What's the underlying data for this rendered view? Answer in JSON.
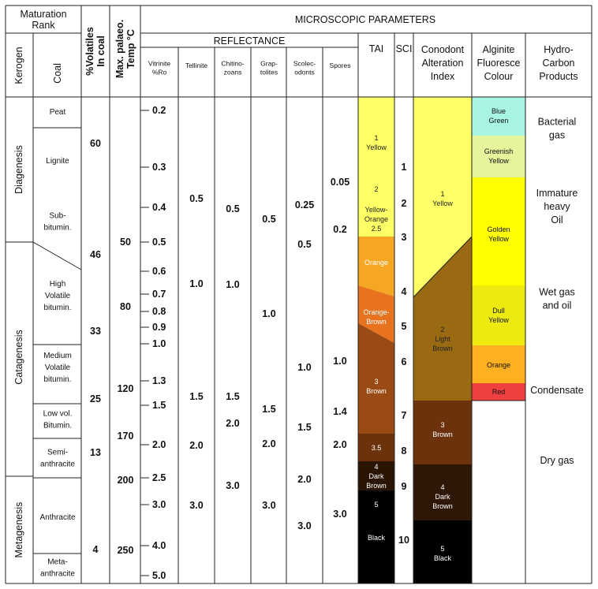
{
  "headers": {
    "maturation_rank": [
      "Maturation",
      "Rank"
    ],
    "kerogen": "Kerogen",
    "coal": "Coal",
    "volatiles": [
      "%Volatiles",
      "In coal"
    ],
    "palaeo_temp": [
      "Max. palaeo.",
      "Temp °C"
    ],
    "microscopic": "MICROSCOPIC PARAMETERS",
    "reflectance": "REFLECTANCE",
    "vitrinite": [
      "Vitrinite",
      "%Ro"
    ],
    "tellinite": "Tellinite",
    "chitinozoans": [
      "Chitino-",
      "zoans"
    ],
    "graptolites": [
      "Grap-",
      "tolites"
    ],
    "scolecodonts": [
      "Scolec-",
      "odonts"
    ],
    "spores": "Spores",
    "tai": "TAI",
    "sci": "SCI",
    "cai": [
      "Conodont",
      "Alteration",
      "Index"
    ],
    "alginite": [
      "Alginite",
      "Fluoresce",
      "Colour"
    ],
    "hydrocarbon": [
      "Hydro-",
      "Carbon",
      "Products"
    ]
  },
  "kerogen_stages": [
    "Diagenesis",
    "Catagenesis",
    "Metagenesis"
  ],
  "coal_ranks": [
    [
      "Peat"
    ],
    [
      "Lignite"
    ],
    [
      "Sub-",
      "bitumin."
    ],
    [
      "High",
      "Volatile",
      "bitumin."
    ],
    [
      "Medium",
      "Volatile",
      "bitumin."
    ],
    [
      "Low vol.",
      "Bitumin."
    ],
    [
      "Semi-",
      "anthracite"
    ],
    [
      "Anthracite"
    ],
    [
      "Meta-",
      "anthracite"
    ]
  ],
  "volatiles": [
    "60",
    "46",
    "33",
    "25",
    "13",
    "4"
  ],
  "temperatures": [
    "50",
    "80",
    "120",
    "170",
    "200",
    "250"
  ],
  "vitrinite_ticks": [
    "0.2",
    "0.3",
    "0.4",
    "0.5",
    "0.6",
    "0.7",
    "0.8",
    "0.9",
    "1.0",
    "1.3",
    "1.5",
    "2.0",
    "2.5",
    "3.0",
    "4.0",
    "5.0"
  ],
  "tellinite": [
    "0.5",
    "1.0",
    "1.5",
    "2.0",
    "3.0"
  ],
  "chitinozoans": [
    "0.5",
    "1.0",
    "1.5",
    "2.0",
    "3.0"
  ],
  "graptolites": [
    "0.5",
    "1.0",
    "1.5",
    "2.0",
    "3.0"
  ],
  "scolecodonts": [
    "0.25",
    "0.5",
    "1.0",
    "1.5",
    "2.0",
    "3.0"
  ],
  "spores": [
    "0.05",
    "0.2",
    "1.0",
    "1.4",
    "2.0",
    "3.0"
  ],
  "tai": [
    {
      "text": [
        "1",
        "Yellow"
      ],
      "color": "#ffff66"
    },
    {
      "text": [
        "2"
      ],
      "color": "#ffff66"
    },
    {
      "text": [
        "Yellow-",
        "Orange",
        "2.5"
      ],
      "color": "#f5a623"
    },
    {
      "text": [
        "Orange"
      ],
      "color": "#e8731f"
    },
    {
      "text": [
        "Orange-",
        "Brown"
      ],
      "color": "#9a4b13"
    },
    {
      "text": [
        "3",
        "Brown"
      ],
      "color": "#6b320c"
    },
    {
      "text": [
        "3.5"
      ],
      "color": "#4a2106"
    },
    {
      "text": [
        "4",
        "Dark",
        "Brown"
      ],
      "color": "#2a1505"
    },
    {
      "text": [
        "5"
      ],
      "color": "#000000"
    },
    {
      "text": [
        "Black"
      ],
      "color": "#000000"
    }
  ],
  "sci": [
    "1",
    "2",
    "3",
    "4",
    "5",
    "6",
    "7",
    "8",
    "9",
    "10"
  ],
  "cai": [
    {
      "text": [
        "1",
        "Yellow"
      ],
      "color": "#ffff66"
    },
    {
      "text": [
        "2",
        "Light",
        "Brown"
      ],
      "color": "#9a6a12"
    },
    {
      "text": [
        "3",
        "Brown"
      ],
      "color": "#6b320c"
    },
    {
      "text": [
        "4",
        "Dark",
        "Brown"
      ],
      "color": "#2e1706"
    },
    {
      "text": [
        "5",
        "Black"
      ],
      "color": "#000000"
    }
  ],
  "alginite": [
    {
      "text": [
        "Blue",
        "Green"
      ],
      "color": "#a8f5e6"
    },
    {
      "text": [
        "Greenish",
        "Yellow"
      ],
      "color": "#e6f59c"
    },
    {
      "text": [
        "Golden",
        "Yellow"
      ],
      "color": "#ffff00"
    },
    {
      "text": [
        "Dull",
        "Yellow"
      ],
      "color": "#eeea10"
    },
    {
      "text": [
        "Orange"
      ],
      "color": "#ffb020"
    },
    {
      "text": [
        "Red"
      ],
      "color": "#f04040"
    }
  ],
  "hydrocarbons": [
    [
      "Bacterial",
      "gas"
    ],
    [
      "Immature",
      "heavy",
      "Oil"
    ],
    [
      "Wet gas",
      "and oil"
    ],
    [
      "Condensate"
    ],
    [
      "Dry gas"
    ]
  ]
}
